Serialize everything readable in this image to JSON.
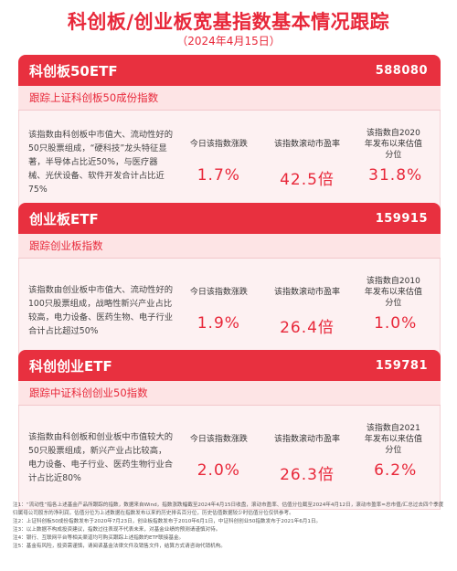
{
  "header": {
    "title": "科创板/创业板宽基指数基本情况跟踪",
    "date": "（2024年4月15日）"
  },
  "cards": [
    {
      "name": "科创板50ETF",
      "code": "588080",
      "track": "跟踪上证科创板50成份指数",
      "description": "该指数由科创板中市值大、流动性好的50只股票组成，“硬科技”龙头特征显著，半导体占比近50%，与医疗器械、光伏设备、软件开发合计占比近75%",
      "labels": [
        "今日该指数涨跌",
        "该指数滚动市盈率",
        "该指数自2020年发布以来估值分位"
      ],
      "values": [
        "1.7%",
        "42.5倍",
        "31.8%"
      ]
    },
    {
      "name": "创业板ETF",
      "code": "159915",
      "track": "跟踪创业板指数",
      "description": "该指数由创业板中市值大、流动性好的100只股票组成，战略性新兴产业占比较高，电力设备、医药生物、电子行业合计占比超过50%",
      "labels": [
        "今日该指数涨跌",
        "该指数滚动市盈率",
        "该指数自2010年发布以来估值分位"
      ],
      "values": [
        "1.9%",
        "26.4倍",
        "1.0%"
      ]
    },
    {
      "name": "科创创业ETF",
      "code": "159781",
      "track": "跟踪中证科创创业50指数",
      "description": "该指数由科创板和创业板中市值较大的50只股票组成，新兴产业占比较高，电力设备、电子行业、医药生物行业合计占比近80%",
      "labels": [
        "今日该指数涨跌",
        "该指数滚动市盈率",
        "该指数自2021年发布以来估值分位"
      ],
      "values": [
        "2.0%",
        "26.3倍",
        "6.2%"
      ]
    }
  ],
  "notes": [
    "注1：“流动性”指各上述基金产品所跟踪的指数，数据来自Wind，指数涨跌幅截至2024年4月15日收盘，滚动市盈率、估值分位截至2024年4月12日，滚动市盈率=总市值/汇总过去四个季度归属母公司股东的净利润，估值分位为上述数据在指数发布以来的历史排名百分位，历史估值数据较少时估值分位仅供参考。",
    "注2：上证科创板50成份指数发布于2020年7月23日，创业板指数发布于2010年6月1日，中证科创创业50指数发布于2021年6月1日。",
    "注3：以上数据不构成投资建议，指数过往表现不代表未来，对基金业绩的预测请谨慎对待。",
    "注4：银行、互联网平台等相关渠道均可购买跟踪上述指数的ETF联接基金。",
    "注5：基金有风险，投资需谨慎，请阅读基金法律文件及销售文件，结算方式请咨询代销机构。"
  ]
}
